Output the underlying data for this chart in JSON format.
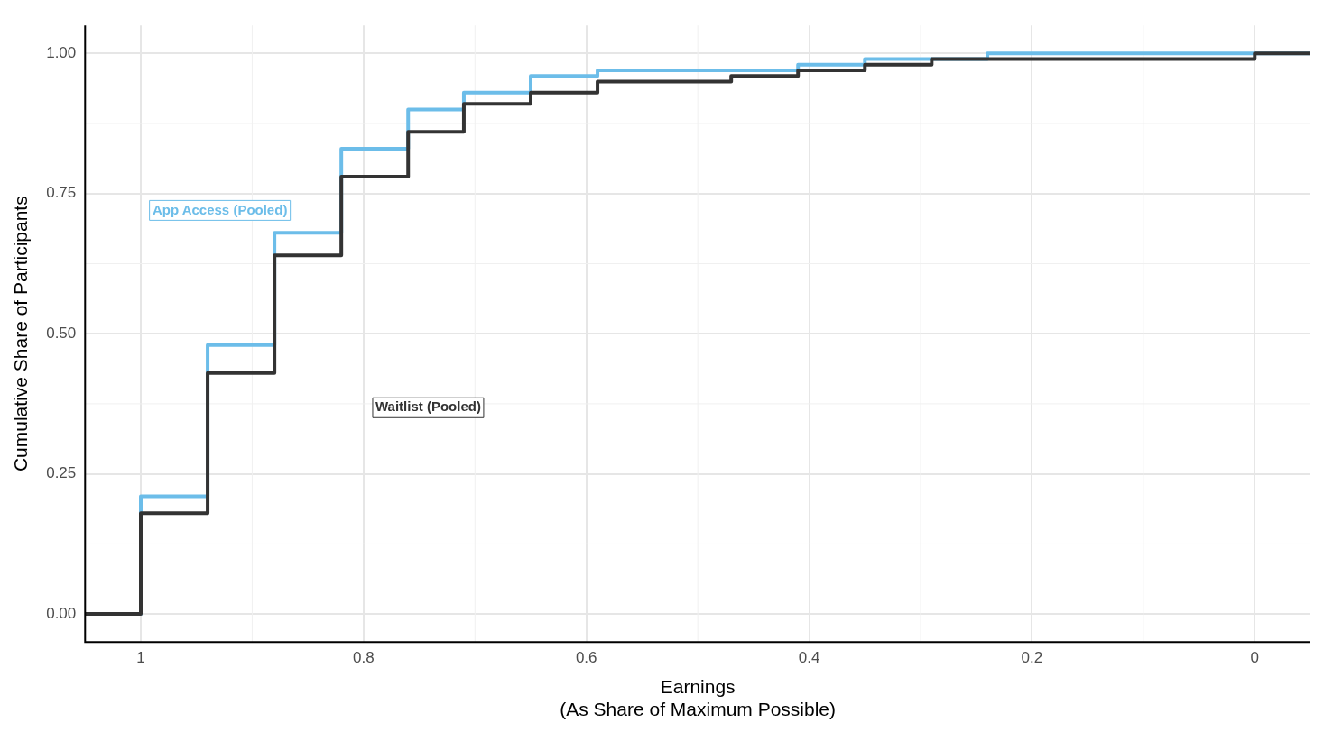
{
  "chart_data": {
    "type": "step",
    "xlabel": "Earnings\n(As Share of Maximum Possible)",
    "ylabel": "Cumulative Share of Participants",
    "x": [
      1.05,
      1,
      0.94,
      0.88,
      0.82,
      0.76,
      0.71,
      0.65,
      0.59,
      0.53,
      0.47,
      0.41,
      0.35,
      0.29,
      0.24,
      0.18,
      0.12,
      0.06,
      0,
      -0.05
    ],
    "series": [
      {
        "name": "App Access (Pooled)",
        "color": "#6cbde9",
        "values": [
          0,
          0.21,
          0.48,
          0.68,
          0.83,
          0.9,
          0.93,
          0.96,
          0.97,
          0.97,
          0.97,
          0.98,
          0.99,
          0.99,
          1.0,
          1.0,
          1.0,
          1.0,
          1.0,
          1.0
        ]
      },
      {
        "name": "Waitlist (Pooled)",
        "color": "#333333",
        "values": [
          0,
          0.18,
          0.43,
          0.64,
          0.78,
          0.86,
          0.91,
          0.93,
          0.95,
          0.95,
          0.96,
          0.97,
          0.98,
          0.99,
          0.99,
          0.99,
          0.99,
          0.99,
          1.0,
          1.0
        ]
      }
    ],
    "xlim": [
      1.05,
      -0.05
    ],
    "xticks": [
      1,
      0.8,
      0.6,
      0.4,
      0.2,
      0
    ],
    "ylim": [
      -0.05,
      1.05
    ],
    "yticks": [
      {
        "value": 0,
        "label": "0.00"
      },
      {
        "value": 0.25,
        "label": "0.25"
      },
      {
        "value": 0.5,
        "label": "0.50"
      },
      {
        "value": 0.75,
        "label": "0.75"
      },
      {
        "value": 1,
        "label": "1.00"
      }
    ],
    "grid": true,
    "legend": false,
    "line_style": "solid",
    "marker": "none"
  }
}
